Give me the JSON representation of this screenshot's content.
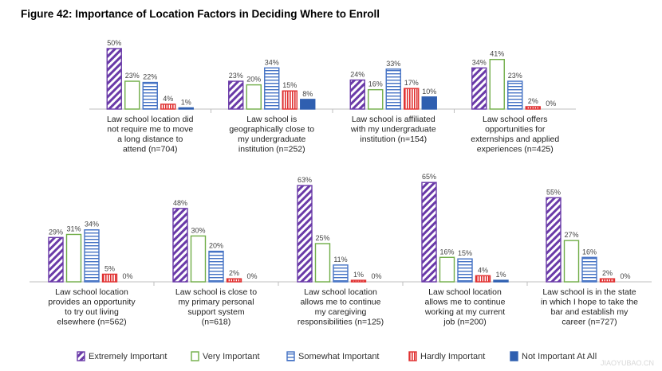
{
  "title": "Figure 42: Importance of Location Factors in Deciding Where to Enroll",
  "watermark": "JIAOYUBAO.CN",
  "legend": [
    {
      "name": "Extremely Important",
      "pattern": "diag"
    },
    {
      "name": "Very Important",
      "pattern": "solid-light"
    },
    {
      "name": "Somewhat Important",
      "pattern": "hlines"
    },
    {
      "name": "Hardly Important",
      "pattern": "vlines"
    },
    {
      "name": "Not Important At All",
      "pattern": "solid-dark"
    }
  ],
  "colors": {
    "extremely": "#6a3aa8",
    "very": "#70ad47",
    "somewhat": "#4472c4",
    "hardly": "#e03030",
    "not": "#2f5fb0"
  },
  "chart_data": {
    "type": "bar",
    "series_names": [
      "Extremely Important",
      "Very Important",
      "Somewhat Important",
      "Hardly Important",
      "Not Important At All"
    ],
    "ylim": [
      0,
      65
    ],
    "groups": [
      {
        "label": [
          "Law school location did",
          "not require me to move",
          "a long distance to",
          "attend (n=704)"
        ],
        "values": [
          50,
          23,
          22,
          4,
          1
        ]
      },
      {
        "label": [
          "Law school is",
          "geographically close to",
          "my undergraduate",
          "institution (n=252)"
        ],
        "values": [
          23,
          20,
          34,
          15,
          8
        ]
      },
      {
        "label": [
          "Law school is affiliated",
          "with my undergraduate",
          "institution (n=154)"
        ],
        "values": [
          24,
          16,
          33,
          17,
          10
        ]
      },
      {
        "label": [
          "Law school offers",
          "opportunities for",
          "externships and applied",
          "experiences (n=425)"
        ],
        "values": [
          34,
          41,
          23,
          2,
          0
        ]
      },
      {
        "label": [
          "Law school location",
          "provides an opportunity",
          "to try out living",
          "elsewhere (n=562)"
        ],
        "values": [
          29,
          31,
          34,
          5,
          0
        ]
      },
      {
        "label": [
          "Law school is close to",
          "my primary personal",
          "support system",
          "(n=618)"
        ],
        "values": [
          48,
          30,
          20,
          2,
          0
        ]
      },
      {
        "label": [
          "Law school location",
          "allows me to continue",
          "my caregiving",
          "responsibilities (n=125)"
        ],
        "values": [
          63,
          25,
          11,
          1,
          0
        ]
      },
      {
        "label": [
          "Law school location",
          "allows me to continue",
          "working at my current",
          "job (n=200)"
        ],
        "values": [
          65,
          16,
          15,
          4,
          1
        ]
      },
      {
        "label": [
          "Law school is in the state",
          "in which I hope to take the",
          "bar and establish my",
          "career (n=727)"
        ],
        "values": [
          55,
          27,
          16,
          2,
          0
        ]
      }
    ]
  }
}
